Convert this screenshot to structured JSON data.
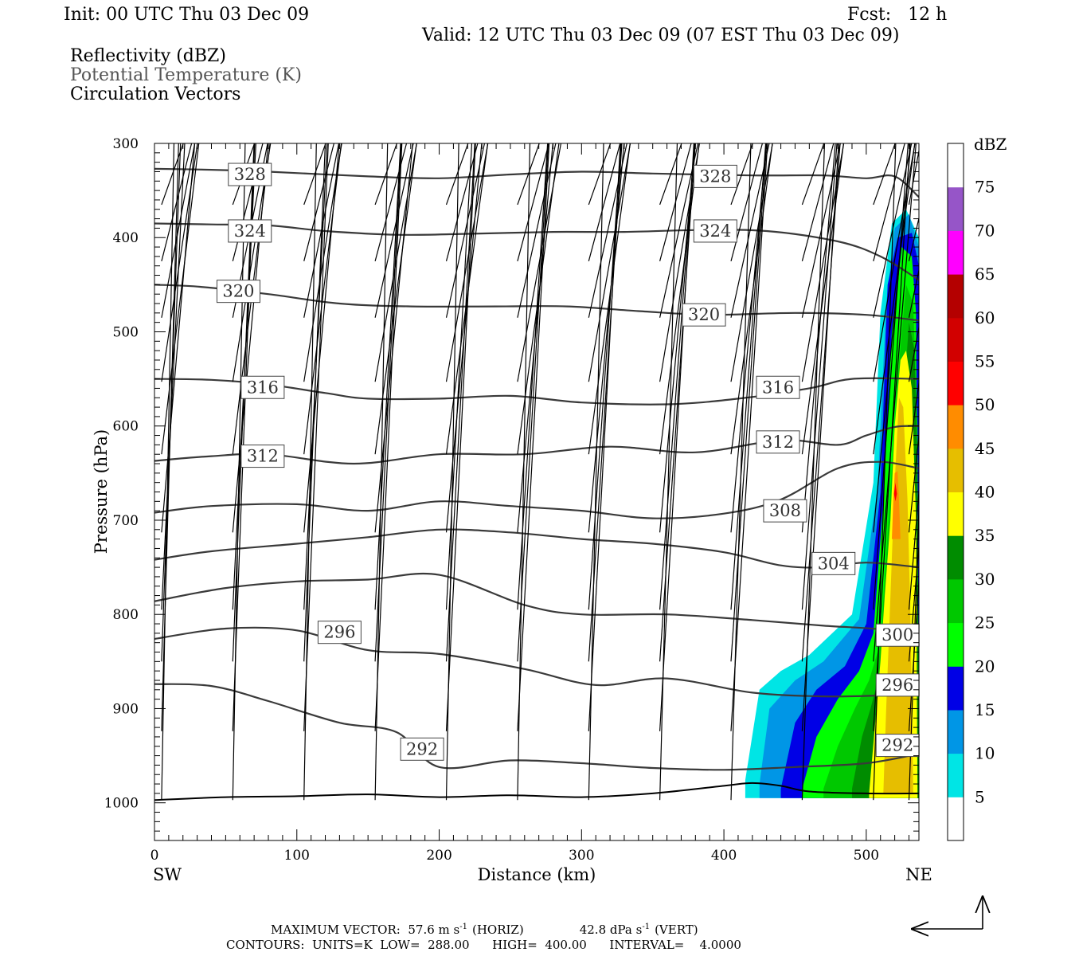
{
  "header": {
    "init": "Init: 00 UTC Thu 03 Dec 09",
    "fcst": "Fcst:   12 h",
    "valid": "Valid: 12 UTC Thu 03 Dec 09 (07 EST Thu 03 Dec 09)",
    "field1": "Reflectivity (dBZ)",
    "field2": "Potential Temperature (K)",
    "field3": "Circulation Vectors"
  },
  "chart_data": {
    "type": "cross-section",
    "xlabel": "Distance (km)",
    "ylabel": "Pressure (hPa)",
    "x_end_left": "SW",
    "x_end_right": "NE",
    "xlim": [
      0,
      537
    ],
    "ylim": [
      300,
      1040
    ],
    "x_ticks": [
      0,
      100,
      200,
      300,
      400,
      500
    ],
    "y_ticks": [
      300,
      400,
      500,
      600,
      700,
      800,
      900,
      1000
    ],
    "colorbar": {
      "unit": "dBZ",
      "levels": [
        5,
        10,
        15,
        20,
        25,
        30,
        35,
        40,
        45,
        50,
        55,
        60,
        65,
        70,
        75
      ],
      "colors": [
        "#ffffff",
        "#00e5e5",
        "#0096e6",
        "#0000e6",
        "#00ff00",
        "#00c800",
        "#008c00",
        "#ffff00",
        "#e6be00",
        "#ff8c00",
        "#ff0000",
        "#d20000",
        "#b40000",
        "#ff00ff",
        "#9655c8",
        "#ffffff"
      ]
    },
    "theta_contours": [
      {
        "label": "328",
        "x": [
          0,
          40,
          80,
          150,
          200,
          250,
          300,
          350,
          420,
          470,
          500,
          520,
          537
        ],
        "p": [
          327,
          328,
          330,
          335,
          337,
          333,
          330,
          332,
          334,
          334,
          337,
          335,
          357
        ]
      },
      {
        "label": "324",
        "x": [
          0,
          40,
          80,
          120,
          170,
          220,
          280,
          330,
          380,
          430,
          480,
          510,
          537
        ],
        "p": [
          385,
          386,
          387,
          393,
          397,
          396,
          394,
          394,
          392,
          393,
          404,
          420,
          445
        ]
      },
      {
        "label": "320",
        "x": [
          0,
          30,
          80,
          130,
          180,
          240,
          290,
          340,
          390,
          450,
          500,
          537
        ],
        "p": [
          450,
          452,
          460,
          470,
          473,
          473,
          473,
          478,
          482,
          480,
          482,
          488
        ]
      },
      {
        "label": "316",
        "x": [
          0,
          40,
          80,
          120,
          150,
          200,
          250,
          300,
          360,
          410,
          460,
          490,
          537
        ],
        "p": [
          550,
          551,
          556,
          565,
          571,
          571,
          568,
          575,
          577,
          571,
          560,
          550,
          550
        ]
      },
      {
        "label": "312",
        "x": [
          0,
          40,
          80,
          140,
          200,
          260,
          320,
          380,
          440,
          480,
          500,
          520,
          537
        ],
        "p": [
          637,
          632,
          630,
          640,
          630,
          630,
          622,
          628,
          615,
          620,
          610,
          601,
          600
        ]
      },
      {
        "label": "308",
        "x": [
          0,
          40,
          100,
          150,
          200,
          250,
          300,
          350,
          400,
          440,
          480,
          510,
          537
        ],
        "p": [
          692,
          685,
          683,
          690,
          680,
          685,
          690,
          698,
          693,
          678,
          645,
          638,
          645
        ]
      },
      {
        "label": "304",
        "x": [
          0,
          40,
          100,
          150,
          200,
          250,
          300,
          350,
          400,
          440,
          470,
          500,
          537
        ],
        "p": [
          742,
          733,
          725,
          718,
          710,
          713,
          720,
          725,
          734,
          748,
          750,
          745,
          750
        ]
      },
      {
        "label": "300",
        "x": [
          0,
          50,
          100,
          150,
          200,
          260,
          300,
          360,
          420,
          470,
          510,
          537
        ],
        "p": [
          786,
          772,
          765,
          763,
          758,
          790,
          800,
          800,
          806,
          812,
          816,
          825
        ]
      },
      {
        "label": "296",
        "x": [
          0,
          50,
          100,
          150,
          200,
          260,
          310,
          360,
          420,
          470,
          510,
          537
        ],
        "p": [
          826,
          815,
          817,
          838,
          842,
          858,
          875,
          868,
          883,
          887,
          886,
          883
        ]
      },
      {
        "label": "292",
        "x": [
          0,
          40,
          80,
          130,
          170,
          200,
          250,
          300,
          350,
          400,
          450,
          500,
          537
        ],
        "p": [
          874,
          876,
          892,
          915,
          925,
          962,
          955,
          958,
          963,
          965,
          962,
          958,
          948
        ]
      }
    ],
    "contour_labels": [
      {
        "text": "328",
        "x": 67,
        "p": 333
      },
      {
        "text": "328",
        "x": 394,
        "p": 335
      },
      {
        "text": "324",
        "x": 67,
        "p": 393
      },
      {
        "text": "324",
        "x": 394,
        "p": 393
      },
      {
        "text": "320",
        "x": 59,
        "p": 457
      },
      {
        "text": "320",
        "x": 386,
        "p": 482
      },
      {
        "text": "316",
        "x": 76,
        "p": 559
      },
      {
        "text": "316",
        "x": 438,
        "p": 559
      },
      {
        "text": "312",
        "x": 76,
        "p": 632
      },
      {
        "text": "312",
        "x": 438,
        "p": 617
      },
      {
        "text": "308",
        "x": 443,
        "p": 690
      },
      {
        "text": "304",
        "x": 477,
        "p": 746
      },
      {
        "text": "300",
        "x": 522,
        "p": 822
      },
      {
        "text": "296",
        "x": 130,
        "p": 819
      },
      {
        "text": "296",
        "x": 522,
        "p": 875
      },
      {
        "text": "292",
        "x": 188,
        "p": 943
      },
      {
        "text": "292",
        "x": 522,
        "p": 939
      }
    ],
    "surface_pressure": {
      "x": [
        0,
        50,
        100,
        150,
        200,
        250,
        300,
        350,
        400,
        420,
        440,
        460,
        500,
        537
      ],
      "p": [
        997,
        994,
        993,
        991,
        994,
        992,
        994,
        990,
        982,
        979,
        982,
        988,
        990,
        990
      ]
    },
    "reflectivity_regions": [
      {
        "dbz": 5,
        "x": [
          415,
          425,
          440,
          460,
          490,
          505,
          510,
          518,
          528,
          537,
          537,
          415
        ],
        "p": [
          976,
          880,
          860,
          843,
          800,
          660,
          480,
          385,
          370,
          400,
          995,
          995
        ]
      },
      {
        "dbz": 10,
        "x": [
          425,
          432,
          450,
          470,
          495,
          508,
          514,
          520,
          530,
          537,
          537,
          425
        ],
        "p": [
          980,
          900,
          870,
          850,
          805,
          665,
          470,
          390,
          375,
          410,
          995,
          995
        ]
      },
      {
        "dbz": 15,
        "x": [
          440,
          450,
          465,
          485,
          500,
          510,
          515,
          522,
          532,
          537,
          537,
          440
        ],
        "p": [
          985,
          915,
          880,
          855,
          810,
          670,
          450,
          400,
          395,
          430,
          995,
          995
        ]
      },
      {
        "dbz": 20,
        "x": [
          455,
          465,
          480,
          495,
          505,
          512,
          518,
          525,
          532,
          535,
          537,
          455
        ],
        "p": [
          985,
          930,
          890,
          860,
          820,
          680,
          500,
          410,
          420,
          480,
          995,
          995
        ]
      },
      {
        "dbz": 25,
        "x": [
          470,
          480,
          492,
          502,
          510,
          516,
          522,
          528,
          533,
          536,
          537,
          470
        ],
        "p": [
          985,
          940,
          900,
          870,
          830,
          690,
          550,
          450,
          470,
          600,
          995,
          995
        ]
      },
      {
        "dbz": 30,
        "x": [
          490,
          497,
          503,
          510,
          515,
          520,
          525,
          530,
          534,
          536,
          537,
          490
        ],
        "p": [
          985,
          930,
          900,
          860,
          800,
          700,
          600,
          490,
          520,
          650,
          995,
          995
        ]
      },
      {
        "dbz": 35,
        "x": [
          502,
          506,
          510,
          513,
          517,
          520,
          524,
          528,
          532,
          535,
          536,
          502
        ],
        "p": [
          990,
          920,
          850,
          780,
          700,
          600,
          530,
          520,
          560,
          700,
          995,
          995
        ]
      },
      {
        "dbz": 40,
        "x": [
          512,
          514,
          516,
          518,
          520,
          523,
          526,
          529,
          531,
          533,
          512
        ],
        "p": [
          990,
          900,
          820,
          740,
          660,
          570,
          580,
          680,
          800,
          990,
          990
        ]
      },
      {
        "dbz": 45,
        "x": [
          518,
          519,
          520,
          522,
          523,
          524,
          518
        ],
        "p": [
          720,
          680,
          650,
          648,
          680,
          720,
          720
        ]
      },
      {
        "dbz": 50,
        "x": [
          519.5,
          520.5,
          521.5,
          520.5
        ],
        "p": [
          672,
          660,
          672,
          680
        ]
      }
    ],
    "vectors": {
      "rows": [
        {
          "p": 365,
          "u": [
            48,
            48,
            48,
            48,
            48,
            48,
            48,
            48,
            48,
            48,
            48,
            25
          ],
          "w": [
            0,
            0,
            -4,
            0,
            0,
            1,
            0,
            0,
            1,
            1,
            2,
            5
          ]
        },
        {
          "p": 425,
          "u": [
            44,
            44,
            44,
            46,
            46,
            46,
            46,
            46,
            46,
            46,
            46,
            40
          ],
          "w": [
            0,
            0,
            -2,
            0,
            0,
            1,
            0,
            0,
            2,
            3,
            1,
            12
          ]
        },
        {
          "p": 485,
          "u": [
            40,
            42,
            42,
            46,
            46,
            46,
            46,
            46,
            46,
            46,
            46,
            44
          ],
          "w": [
            0,
            -2,
            -4,
            0,
            0,
            -1,
            -1,
            -1,
            2,
            2,
            -1,
            34
          ]
        },
        {
          "p": 553,
          "u": [
            38,
            40,
            40,
            44,
            44,
            46,
            44,
            42,
            44,
            44,
            44,
            46
          ],
          "w": [
            0,
            -3,
            -4,
            0,
            2,
            4,
            0,
            1,
            6,
            3,
            0,
            40
          ]
        },
        {
          "p": 630,
          "u": [
            36,
            36,
            36,
            40,
            40,
            40,
            40,
            38,
            40,
            40,
            40,
            42
          ],
          "w": [
            5,
            0,
            -4,
            -2,
            6,
            0,
            -3,
            0,
            4,
            0,
            0,
            35
          ]
        },
        {
          "p": 713,
          "u": [
            30,
            32,
            32,
            34,
            32,
            32,
            32,
            32,
            32,
            30,
            34,
            36
          ],
          "w": [
            0,
            -2,
            0,
            -2,
            2,
            -4,
            0,
            0,
            4,
            4,
            0,
            6
          ]
        },
        {
          "p": 795,
          "u": [
            20,
            20,
            20,
            22,
            22,
            26,
            28,
            30,
            30,
            30,
            30,
            34
          ],
          "w": [
            4,
            0,
            0,
            -3,
            4,
            -4,
            -4,
            5,
            5,
            6,
            10,
            0
          ]
        },
        {
          "p": 850,
          "u": [
            16,
            18,
            18,
            22,
            24,
            26,
            28,
            30,
            30,
            32,
            36,
            38
          ],
          "w": [
            0,
            0,
            2,
            0,
            -3,
            -4,
            -4,
            8,
            8,
            22,
            24,
            -4
          ]
        },
        {
          "p": 924,
          "u": [
            14,
            18,
            20,
            22,
            24,
            26,
            26,
            28,
            30,
            30,
            30,
            32
          ],
          "w": [
            0,
            2,
            4,
            -4,
            0,
            -4,
            -8,
            18,
            18,
            22,
            22,
            -14
          ]
        },
        {
          "p": 997,
          "u": [
            10,
            10,
            10,
            10,
            10,
            10,
            12,
            14,
            16,
            18,
            18,
            18
          ],
          "w": [
            2,
            2,
            2,
            2,
            0,
            2,
            0,
            4,
            8,
            4,
            0,
            0
          ]
        }
      ],
      "x": [
        5,
        55,
        105,
        155,
        205,
        255,
        305,
        355,
        405,
        455,
        505,
        530
      ]
    },
    "footer": {
      "line1_a": "MAXIMUM VECTOR:  57.6 m s",
      "line1_b": "(HORIZ)",
      "line1_c": "42.8 dPa s",
      "line1_d": "(VERT)",
      "line1_sup": "-1",
      "line2": "CONTOURS:  UNITS=K  LOW=  288.00      HIGH=  400.00      INTERVAL=    4.0000"
    }
  }
}
